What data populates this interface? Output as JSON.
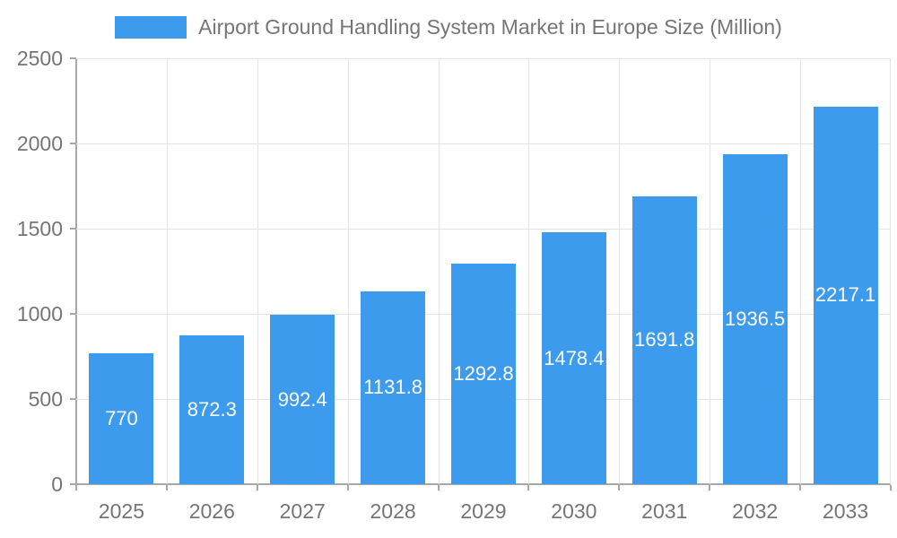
{
  "chart_data": {
    "type": "bar",
    "title": "Airport Ground Handling System Market in Europe Size (Million)",
    "legend": "Airport Ground Handling System Market in Europe Size (Million)",
    "legend_position": "top",
    "categories": [
      "2025",
      "2026",
      "2027",
      "2028",
      "2029",
      "2030",
      "2031",
      "2032",
      "2033"
    ],
    "values": [
      770,
      872.3,
      992.4,
      1131.8,
      1292.8,
      1478.4,
      1691.8,
      1936.5,
      2217.1
    ],
    "value_labels": [
      "770",
      "872.3",
      "992.4",
      "1131.8",
      "1292.8",
      "1478.4",
      "1691.8",
      "1936.5",
      "2217.1"
    ],
    "xlabel": "",
    "ylabel": "",
    "ylim": [
      0,
      2500
    ],
    "yticks": [
      0,
      500,
      1000,
      1500,
      2000,
      2500
    ],
    "grid": true,
    "colors": {
      "bar": "#3D9BEE",
      "grid": "#e4e4e4",
      "axis": "#a8a8a8",
      "tick_text": "#757575",
      "value_text": "#ffffff",
      "background": "#ffffff"
    }
  }
}
